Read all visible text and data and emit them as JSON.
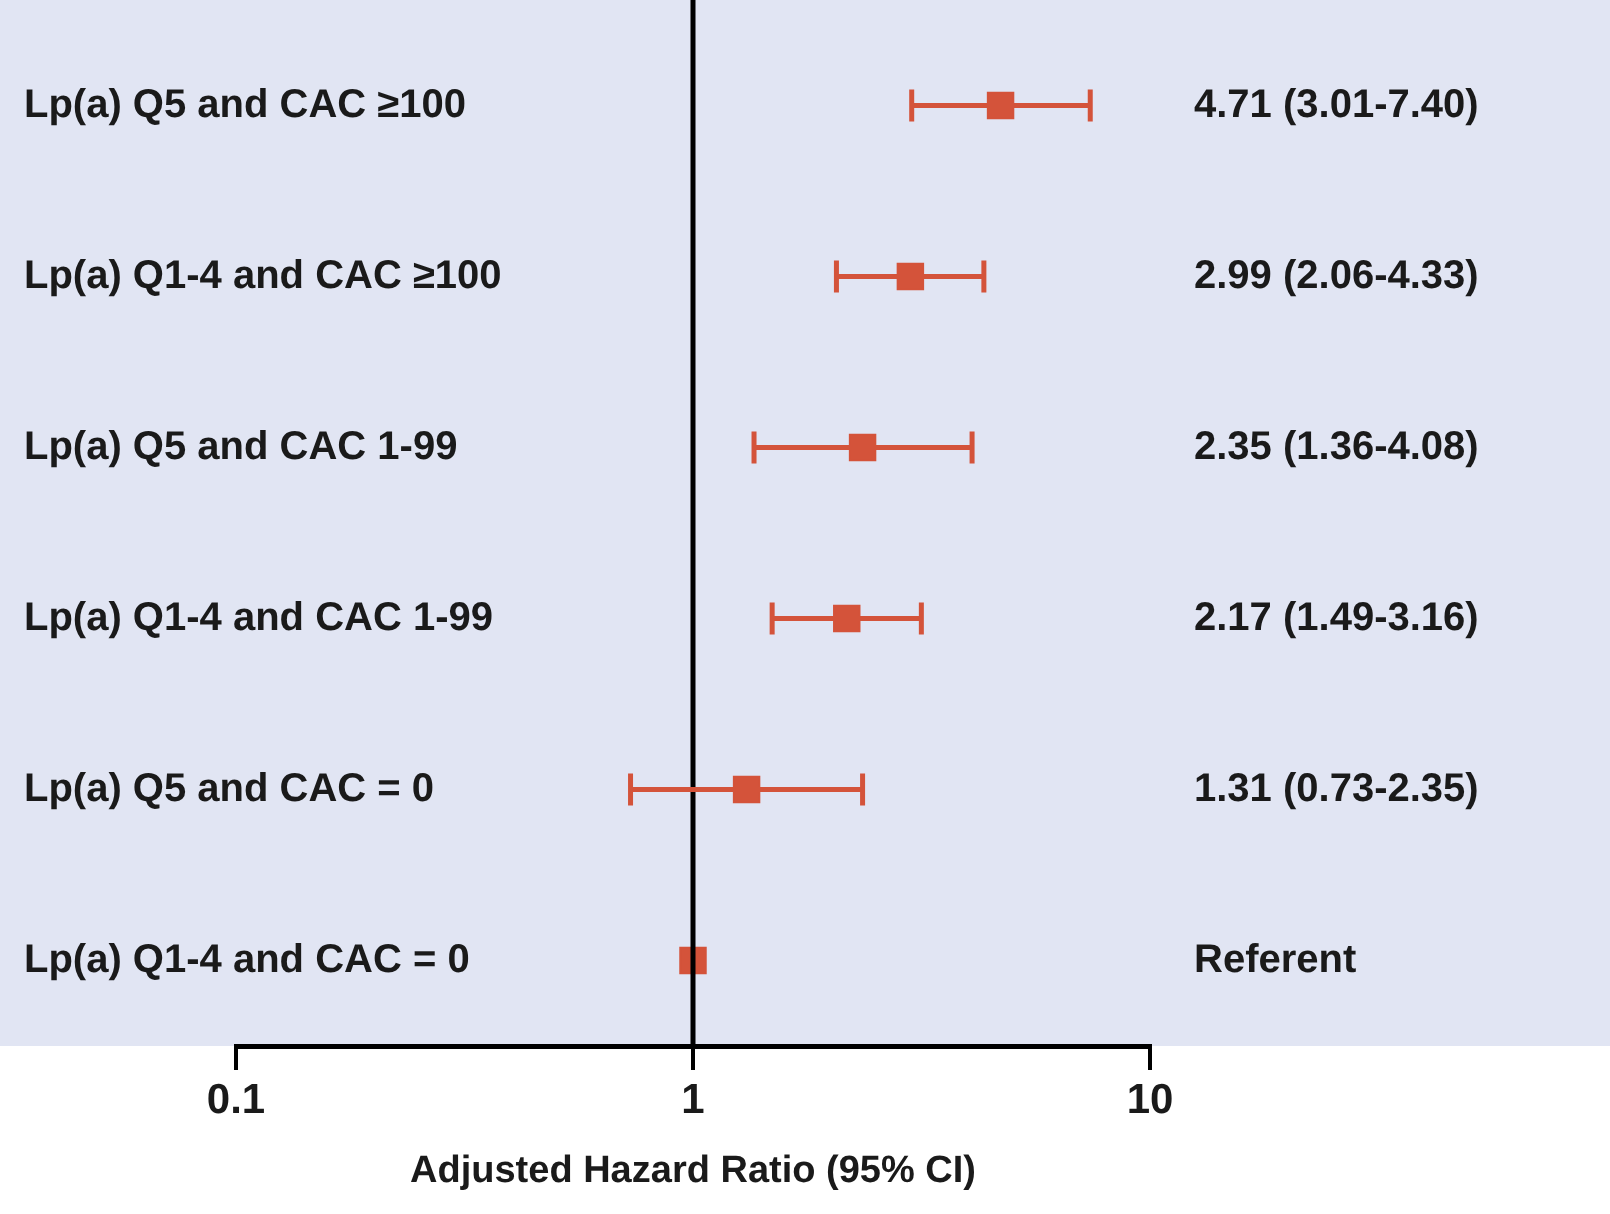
{
  "chart_data": {
    "type": "scatter",
    "orientation": "horizontal",
    "xlabel": "Adjusted Hazard Ratio (95% CI)",
    "categories": [
      "Lp(a) Q5 and CAC ≥100",
      "Lp(a) Q1-4 and CAC ≥100",
      "Lp(a) Q5 and CAC 1-99",
      "Lp(a) Q1-4 and CAC 1-99",
      "Lp(a) Q5 and CAC = 0",
      "Lp(a) Q1-4 and CAC = 0"
    ],
    "values": [
      4.71,
      2.99,
      2.35,
      2.17,
      1.31,
      1
    ],
    "errors": [
      [
        3.01,
        7.4
      ],
      [
        2.06,
        4.33
      ],
      [
        1.36,
        4.08
      ],
      [
        1.49,
        3.16
      ],
      [
        0.73,
        2.35
      ],
      null
    ],
    "annotations": [
      "4.71 (3.01-7.40)",
      "2.99 (2.06-4.33)",
      "2.35 (1.36-4.08)",
      "2.17 (1.49-3.16)",
      "1.31 (0.73-2.35)",
      "Referent"
    ],
    "color": "#d4533a",
    "marker": "square",
    "log": "x",
    "xlim": [
      0.1,
      10
    ],
    "xticks": [
      0.1,
      1,
      10
    ],
    "ref_lines": [
      {
        "axis": "x",
        "value": 1,
        "color": "#000000"
      }
    ],
    "grid": false,
    "legend": false
  }
}
